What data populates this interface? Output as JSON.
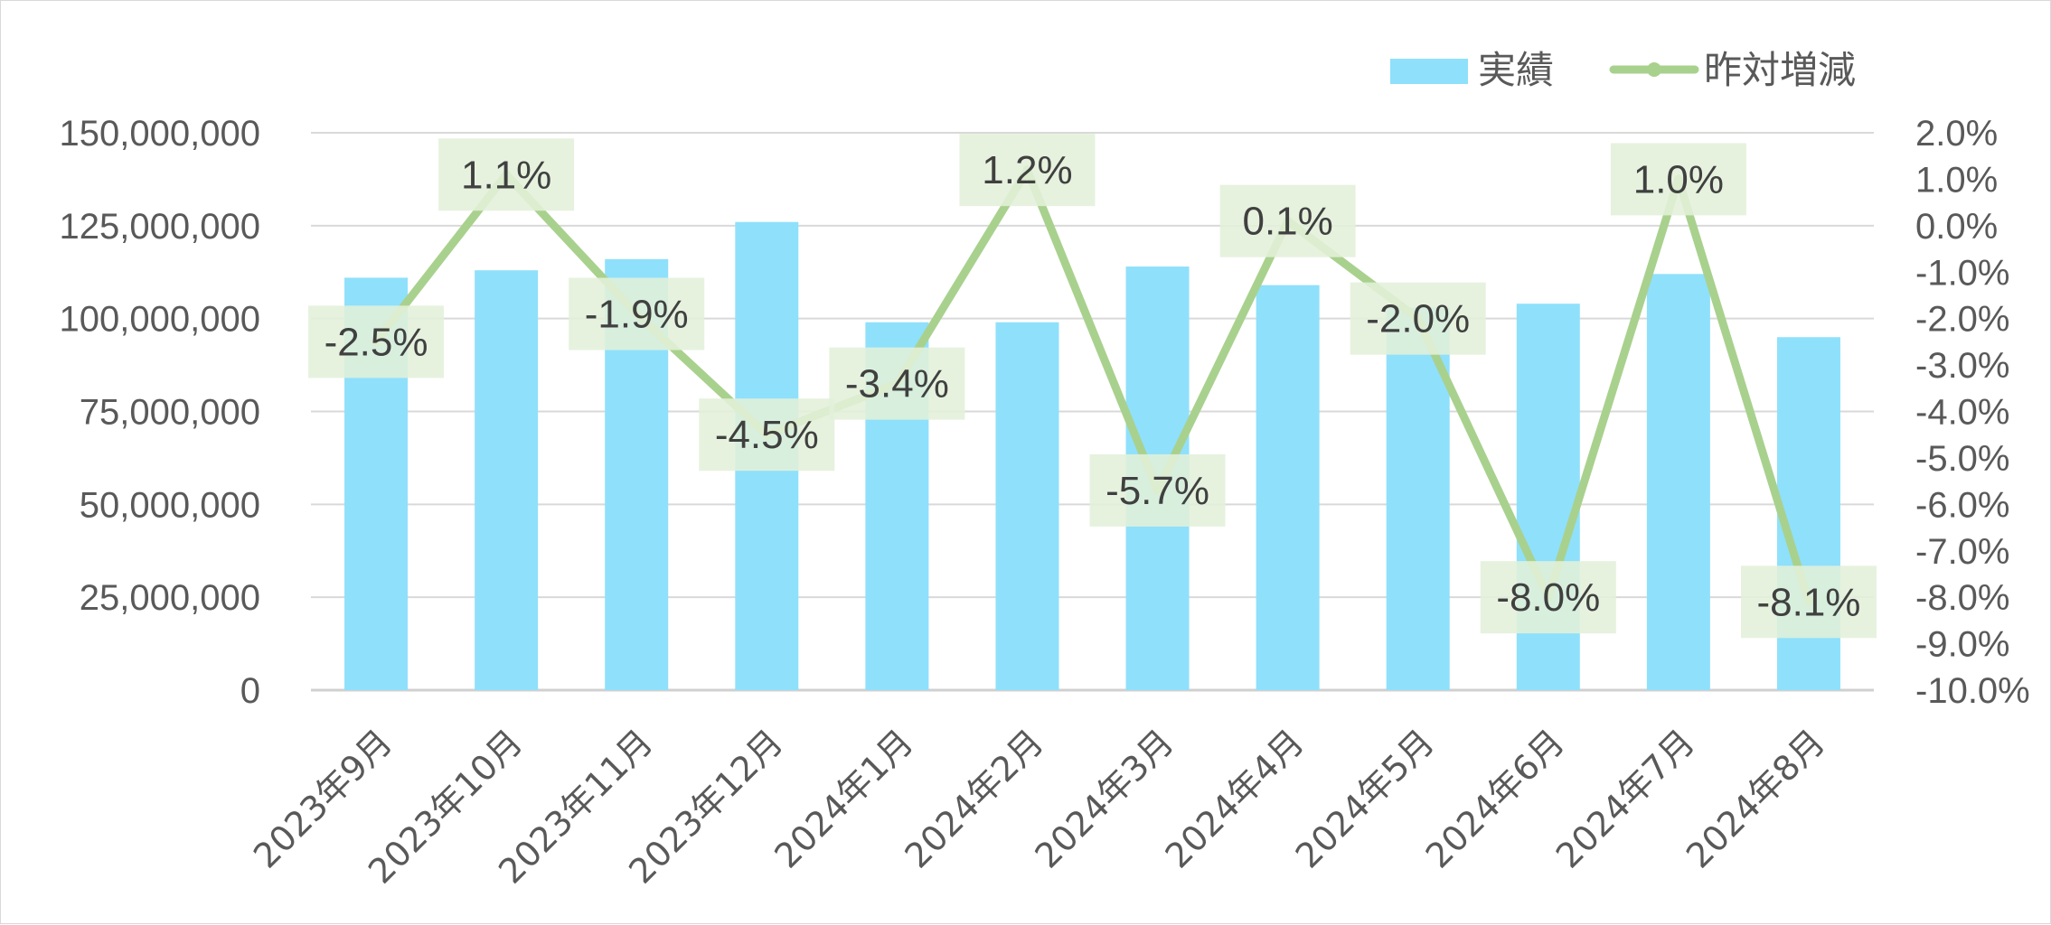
{
  "chart_data": {
    "type": "bar",
    "categories": [
      "2023年9月",
      "2023年10月",
      "2023年11月",
      "2023年12月",
      "2024年1月",
      "2024年2月",
      "2024年3月",
      "2024年4月",
      "2024年5月",
      "2024年6月",
      "2024年7月",
      "2024年8月"
    ],
    "series": [
      {
        "name": "実績",
        "type": "bar",
        "axis": "left",
        "color": "#8fe0fb",
        "values": [
          111000000,
          113000000,
          116000000,
          126000000,
          99000000,
          99000000,
          114000000,
          109000000,
          103000000,
          104000000,
          112000000,
          95000000
        ]
      },
      {
        "name": "昨対増減",
        "type": "line",
        "axis": "right",
        "color": "#a9d18e",
        "values": [
          -2.5,
          1.1,
          -1.9,
          -4.5,
          -3.4,
          1.2,
          -5.7,
          0.1,
          -2.0,
          -8.0,
          1.0,
          -8.1
        ],
        "labels": [
          "-2.5%",
          "1.1%",
          "-1.9%",
          "-4.5%",
          "-3.4%",
          "1.2%",
          "-5.7%",
          "0.1%",
          "-2.0%",
          "-8.0%",
          "1.0%",
          "-8.1%"
        ]
      }
    ],
    "left_axis": {
      "ylim": [
        0,
        150000000
      ],
      "ticks": [
        "0",
        "25,000,000",
        "50,000,000",
        "75,000,000",
        "100,000,000",
        "125,000,000",
        "150,000,000"
      ]
    },
    "right_axis": {
      "ylim": [
        -10.0,
        2.0
      ],
      "ticks": [
        "-10.0%",
        "-9.0%",
        "-8.0%",
        "-7.0%",
        "-6.0%",
        "-5.0%",
        "-4.0%",
        "-3.0%",
        "-2.0%",
        "-1.0%",
        "0.0%",
        "1.0%",
        "2.0%"
      ]
    },
    "grid": true,
    "legend_position": "top-right",
    "label_box_color": "#e2f0d9",
    "title": "",
    "xlabel": "",
    "ylabel": ""
  }
}
